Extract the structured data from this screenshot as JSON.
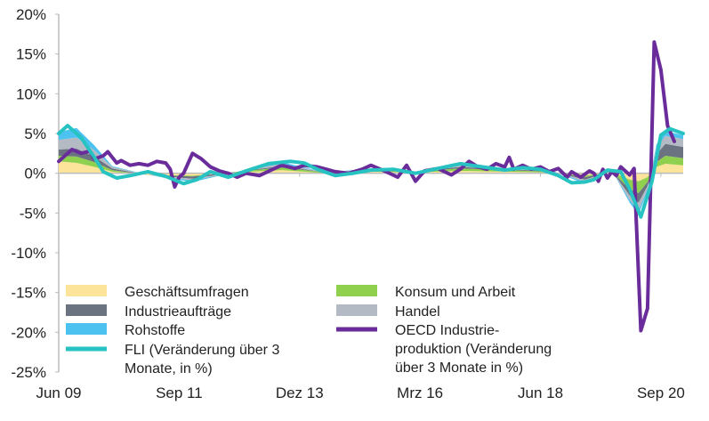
{
  "chart_data": {
    "type": "line",
    "title": "",
    "xlabel": "",
    "ylabel": "",
    "ylim": [
      -25,
      20
    ],
    "yticks": [
      "20%",
      "15%",
      "10%",
      "5%",
      "0%",
      "-5%",
      "-10%",
      "-15%",
      "-20%",
      "-25%"
    ],
    "ytick_values": [
      20,
      15,
      10,
      5,
      0,
      -5,
      -10,
      -15,
      -20,
      -25
    ],
    "xtick_labels": [
      "Jun 09",
      "Sep 11",
      "Dez 13",
      "Mrz 16",
      "Jun 18",
      "Sep 20"
    ],
    "xtick_months": [
      0,
      27,
      54,
      81,
      108,
      135
    ],
    "x_unit": "months since Jun 09",
    "xlim": [
      0,
      140
    ],
    "legend_position": "bottom-left",
    "stack_months": [
      0,
      4,
      8,
      12,
      20,
      30,
      40,
      50,
      60,
      70,
      80,
      90,
      100,
      110,
      118,
      124,
      128,
      130,
      132,
      134,
      136,
      140
    ],
    "stacked_series": [
      {
        "name": "Geschäftsumfragen",
        "color": "#fce49a",
        "values": [
          1.5,
          1.3,
          0.8,
          0.2,
          -0.2,
          -0.3,
          0.1,
          0.4,
          0.0,
          0.2,
          0.1,
          0.3,
          0.2,
          0.1,
          -0.3,
          0.1,
          -0.8,
          -1.0,
          -0.5,
          0.8,
          1.2,
          1.0
        ]
      },
      {
        "name": "Konsum und Arbeit",
        "color": "#8fd14f",
        "values": [
          0.7,
          0.8,
          0.6,
          0.2,
          0.0,
          -0.1,
          0.1,
          0.3,
          0.1,
          0.1,
          0.1,
          0.3,
          0.2,
          0.1,
          -0.2,
          0.1,
          -1.2,
          -1.5,
          -0.6,
          0.6,
          1.0,
          0.9
        ]
      },
      {
        "name": "Industrieaufträge",
        "color": "#6b7280",
        "values": [
          0.8,
          1.0,
          0.7,
          0.2,
          0.0,
          -0.3,
          0.0,
          0.2,
          0.0,
          0.1,
          0.0,
          0.2,
          0.1,
          0.1,
          -0.3,
          0.1,
          -0.8,
          -1.2,
          -0.5,
          1.0,
          1.5,
          1.4
        ]
      },
      {
        "name": "Handel",
        "color": "#b4bac4",
        "values": [
          1.2,
          1.4,
          0.8,
          0.2,
          0.0,
          -0.2,
          0.0,
          0.3,
          0.0,
          0.1,
          0.0,
          0.2,
          0.1,
          0.1,
          -0.3,
          0.1,
          -0.6,
          -1.0,
          -0.4,
          0.8,
          1.0,
          1.0
        ]
      },
      {
        "name": "Rohstoffe",
        "color": "#4cc2f0",
        "values": [
          1.0,
          1.2,
          0.6,
          0.1,
          0.0,
          -0.2,
          0.0,
          0.2,
          0.0,
          0.1,
          0.0,
          0.1,
          0.0,
          0.0,
          -0.2,
          0.0,
          -0.3,
          -0.5,
          -0.2,
          0.4,
          0.6,
          0.5
        ]
      }
    ],
    "series": [
      {
        "name": "FLI (Veränderung über 3 Monate, in %)",
        "color": "#27c2c2",
        "x": [
          0,
          2,
          5,
          8,
          10,
          13,
          16,
          20,
          24,
          28,
          31,
          34,
          38,
          42,
          47,
          52,
          55,
          58,
          62,
          66,
          70,
          75,
          80,
          85,
          90,
          95,
          100,
          104,
          108,
          112,
          115,
          118,
          120,
          123,
          126,
          128,
          130.5,
          133,
          135,
          137,
          140
        ],
        "y": [
          5.0,
          6.0,
          4.5,
          2.0,
          0.2,
          -0.6,
          -0.3,
          0.2,
          -0.4,
          -1.3,
          -0.8,
          0.2,
          -0.5,
          0.3,
          1.2,
          1.5,
          1.3,
          0.5,
          -0.3,
          0.0,
          0.4,
          0.5,
          0.0,
          0.6,
          1.2,
          0.8,
          0.4,
          0.7,
          0.5,
          -0.3,
          -1.2,
          -1.1,
          -0.8,
          0.4,
          0.2,
          -2.0,
          -5.5,
          -1.0,
          4.8,
          5.6,
          5.0
        ]
      },
      {
        "name": "OECD Industrieproduktion (Veränderung über 3 Monate in %)",
        "color": "#6a2c9a",
        "x": [
          0,
          2,
          3,
          5,
          7,
          8,
          10,
          11,
          13,
          14,
          16,
          18,
          20,
          22,
          24,
          25,
          26,
          27,
          28,
          30,
          32,
          34,
          36,
          38,
          40,
          42,
          45,
          48,
          50,
          53,
          55,
          58,
          60,
          62,
          65,
          68,
          70,
          73,
          76,
          78,
          80,
          82,
          85,
          88,
          90,
          92,
          94,
          96,
          98,
          100,
          101,
          102,
          104,
          106,
          108,
          110,
          112,
          114,
          115,
          117,
          119,
          120,
          121,
          122,
          123,
          124,
          125,
          126,
          127,
          128,
          129,
          130.5,
          132,
          133.5,
          135,
          136.5,
          138
        ],
        "y": [
          1.5,
          2.5,
          3.0,
          2.5,
          2.8,
          1.8,
          2.2,
          2.7,
          1.3,
          1.6,
          1.0,
          1.2,
          1.0,
          1.5,
          1.3,
          0.5,
          -1.7,
          -0.5,
          0.0,
          2.5,
          1.8,
          0.8,
          0.3,
          0.0,
          -0.5,
          0.0,
          -0.3,
          0.5,
          1.0,
          0.6,
          1.0,
          0.8,
          0.5,
          0.2,
          0.0,
          0.5,
          1.0,
          0.3,
          -0.5,
          1.0,
          -1.0,
          0.3,
          0.6,
          -0.2,
          0.5,
          1.5,
          0.8,
          0.5,
          1.2,
          0.8,
          2.0,
          0.5,
          1.0,
          0.5,
          0.8,
          0.2,
          0.6,
          -0.5,
          0.2,
          -0.5,
          0.3,
          0.0,
          -1.0,
          0.5,
          -0.6,
          0.2,
          -0.3,
          0.8,
          0.3,
          -0.2,
          0.6,
          -19.8,
          -17.0,
          16.5,
          13.0,
          6.0,
          4.0
        ]
      }
    ],
    "legend": [
      {
        "label": "Geschäftsumfragen",
        "kind": "area",
        "color": "#fce49a"
      },
      {
        "label": "Konsum und Arbeit",
        "kind": "area",
        "color": "#8fd14f"
      },
      {
        "label": "Industrieaufträge",
        "kind": "area",
        "color": "#6b7280"
      },
      {
        "label": "Handel",
        "kind": "area",
        "color": "#b4bac4"
      },
      {
        "label": "Rohstoffe",
        "kind": "area",
        "color": "#4cc2f0"
      },
      {
        "label": "FLI (Veränderung über 3 Monate, in %)",
        "kind": "line",
        "color": "#27c2c2",
        "lines": [
          "FLI (Veränderung über 3",
          "Monate, in %)"
        ]
      },
      {
        "label": "OECD Industrieproduktion (Veränderung über 3 Monate in %)",
        "kind": "line",
        "color": "#6a2c9a",
        "lines": [
          "OECD Industrie-",
          "produktion (Veränderung",
          "über 3 Monate in %)"
        ]
      }
    ]
  }
}
